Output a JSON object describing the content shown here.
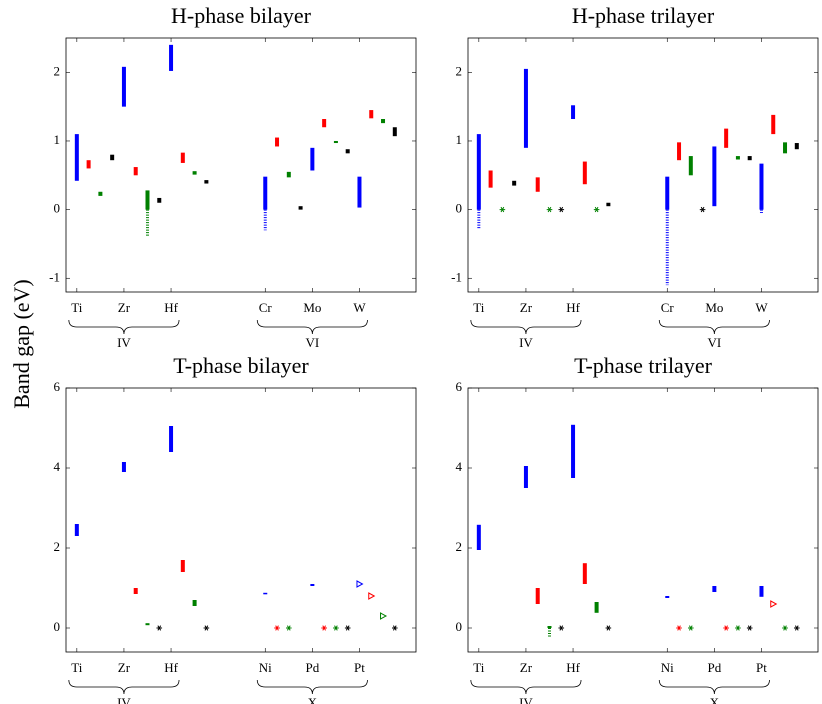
{
  "ylabel": "Band gap (eV)",
  "chart_data": [
    {
      "type": "range-bar",
      "title": "H-phase bilayer",
      "categories": [
        "Ti",
        "Zr",
        "Hf",
        "Cr",
        "Mo",
        "W"
      ],
      "x": [
        1,
        2,
        3,
        5,
        6,
        7
      ],
      "groups": [
        {
          "label": "IV",
          "x": [
            1,
            3
          ]
        },
        {
          "label": "VI",
          "x": [
            5,
            7
          ]
        }
      ],
      "xlim": [
        0.77,
        8.2
      ],
      "ylim": [
        -1.2,
        2.5
      ],
      "yticks": [
        -1,
        0,
        1,
        2
      ],
      "series": [
        {
          "color": "#0000ff",
          "items": [
            {
              "x": 1,
              "low": 0.42,
              "high": 1.1
            },
            {
              "x": 2,
              "low": 1.5,
              "high": 2.08
            },
            {
              "x": 3,
              "low": 2.02,
              "high": 2.4
            },
            {
              "x": 5,
              "low": 0,
              "high": 0.48,
              "dotted_low": -0.3
            },
            {
              "x": 6,
              "low": 0.57,
              "high": 0.9
            },
            {
              "x": 7,
              "low": 0.03,
              "high": 0.48
            }
          ]
        },
        {
          "color": "#ff0000",
          "items": [
            {
              "x": 1.25,
              "low": 0.6,
              "high": 0.72
            },
            {
              "x": 2.25,
              "low": 0.5,
              "high": 0.62
            },
            {
              "x": 3.25,
              "low": 0.68,
              "high": 0.83
            },
            {
              "x": 5.25,
              "low": 0.92,
              "high": 1.05
            },
            {
              "x": 6.25,
              "low": 1.2,
              "high": 1.32
            },
            {
              "x": 7.25,
              "low": 1.33,
              "high": 1.45
            }
          ]
        },
        {
          "color": "#008000",
          "items": [
            {
              "x": 1.5,
              "low": 0.2,
              "high": 0.26
            },
            {
              "x": 2.5,
              "low": 0,
              "high": 0.28,
              "dotted_low": -0.4
            },
            {
              "x": 3.5,
              "low": 0.51,
              "high": 0.56
            },
            {
              "x": 5.5,
              "low": 0.47,
              "high": 0.55
            },
            {
              "x": 6.5,
              "low": 0.97,
              "high": 1.0
            },
            {
              "x": 7.5,
              "low": 1.26,
              "high": 1.32
            }
          ]
        },
        {
          "color": "#000000",
          "items": [
            {
              "x": 1.75,
              "low": 0.72,
              "high": 0.8
            },
            {
              "x": 2.75,
              "low": 0.1,
              "high": 0.17
            },
            {
              "x": 3.75,
              "low": 0.38,
              "high": 0.43
            },
            {
              "x": 5.75,
              "low": 0,
              "high": 0.05
            },
            {
              "x": 6.75,
              "low": 0.82,
              "high": 0.88
            },
            {
              "x": 7.75,
              "low": 1.07,
              "high": 1.2
            }
          ]
        }
      ]
    },
    {
      "type": "range-bar",
      "title": "H-phase trilayer",
      "categories": [
        "Ti",
        "Zr",
        "Hf",
        "Cr",
        "Mo",
        "W"
      ],
      "x": [
        1,
        2,
        3,
        5,
        6,
        7
      ],
      "groups": [
        {
          "label": "IV",
          "x": [
            1,
            3
          ]
        },
        {
          "label": "VI",
          "x": [
            5,
            7
          ]
        }
      ],
      "xlim": [
        0.77,
        8.2
      ],
      "ylim": [
        -1.2,
        2.5
      ],
      "yticks": [
        -1,
        0,
        1,
        2
      ],
      "series": [
        {
          "color": "#0000ff",
          "items": [
            {
              "x": 1,
              "low": 0,
              "high": 1.1,
              "dotted_low": -0.28
            },
            {
              "x": 2,
              "low": 0.9,
              "high": 2.05
            },
            {
              "x": 3,
              "low": 1.32,
              "high": 1.52
            },
            {
              "x": 5,
              "low": 0,
              "high": 0.48,
              "dotted_low": -1.1
            },
            {
              "x": 6,
              "low": 0.05,
              "high": 0.92
            },
            {
              "x": 7,
              "low": 0,
              "high": 0.67,
              "dotted_low": -0.05
            }
          ]
        },
        {
          "color": "#ff0000",
          "items": [
            {
              "x": 1.25,
              "low": 0.32,
              "high": 0.57
            },
            {
              "x": 2.25,
              "low": 0.26,
              "high": 0.47
            },
            {
              "x": 3.25,
              "low": 0.37,
              "high": 0.7
            },
            {
              "x": 5.25,
              "low": 0.72,
              "high": 0.98
            },
            {
              "x": 6.25,
              "low": 0.9,
              "high": 1.18
            },
            {
              "x": 7.25,
              "low": 1.1,
              "high": 1.38
            }
          ]
        },
        {
          "color": "#008000",
          "items": [
            {
              "x": 1.5,
              "star": 0
            },
            {
              "x": 2.5,
              "star": 0
            },
            {
              "x": 3.5,
              "star": 0
            },
            {
              "x": 5.5,
              "low": 0.5,
              "high": 0.78
            },
            {
              "x": 6.5,
              "low": 0.73,
              "high": 0.78
            },
            {
              "x": 7.5,
              "low": 0.82,
              "high": 0.98
            }
          ]
        },
        {
          "color": "#000000",
          "items": [
            {
              "x": 1.75,
              "low": 0.35,
              "high": 0.42
            },
            {
              "x": 2.75,
              "star": 0
            },
            {
              "x": 3.75,
              "low": 0.05,
              "high": 0.1
            },
            {
              "x": 5.75,
              "star": 0
            },
            {
              "x": 6.75,
              "low": 0.72,
              "high": 0.78
            },
            {
              "x": 7.75,
              "low": 0.88,
              "high": 0.97
            }
          ]
        }
      ]
    },
    {
      "type": "range-bar",
      "title": "T-phase bilayer",
      "categories": [
        "Ti",
        "Zr",
        "Hf",
        "Ni",
        "Pd",
        "Pt"
      ],
      "x": [
        1,
        2,
        3,
        5,
        6,
        7
      ],
      "groups": [
        {
          "label": "IV",
          "x": [
            1,
            3
          ]
        },
        {
          "label": "X",
          "x": [
            5,
            7
          ]
        }
      ],
      "xlim": [
        0.77,
        8.2
      ],
      "ylim": [
        -0.6,
        6
      ],
      "yticks": [
        0,
        2,
        4,
        6
      ],
      "series": [
        {
          "color": "#0000ff",
          "items": [
            {
              "x": 1,
              "low": 2.3,
              "high": 2.6
            },
            {
              "x": 2,
              "low": 3.9,
              "high": 4.15
            },
            {
              "x": 3,
              "low": 4.4,
              "high": 5.05
            },
            {
              "x": 5,
              "low": 0.85,
              "high": 0.88
            },
            {
              "x": 6,
              "low": 1.05,
              "high": 1.1
            },
            {
              "x": 7,
              "triangle": 1.1
            }
          ]
        },
        {
          "color": "#ff0000",
          "items": [
            {
              "x": 2.25,
              "low": 0.85,
              "high": 1.0
            },
            {
              "x": 3.25,
              "low": 1.4,
              "high": 1.7
            },
            {
              "x": 5.25,
              "star": 0
            },
            {
              "x": 6.25,
              "star": 0
            },
            {
              "x": 7.25,
              "triangle": 0.8
            }
          ]
        },
        {
          "color": "#008000",
          "items": [
            {
              "x": 2.5,
              "low": 0.07,
              "high": 0.12
            },
            {
              "x": 3.5,
              "low": 0.55,
              "high": 0.7
            },
            {
              "x": 5.5,
              "star": 0
            },
            {
              "x": 6.5,
              "star": 0
            },
            {
              "x": 7.5,
              "triangle": 0.3
            }
          ]
        },
        {
          "color": "#000000",
          "items": [
            {
              "x": 2.75,
              "star": 0
            },
            {
              "x": 3.75,
              "star": 0
            },
            {
              "x": 6.75,
              "star": 0
            },
            {
              "x": 7.75,
              "star": 0
            }
          ]
        }
      ]
    },
    {
      "type": "range-bar",
      "title": "T-phase trilayer",
      "categories": [
        "Ti",
        "Zr",
        "Hf",
        "Ni",
        "Pd",
        "Pt"
      ],
      "x": [
        1,
        2,
        3,
        5,
        6,
        7
      ],
      "groups": [
        {
          "label": "IV",
          "x": [
            1,
            3
          ]
        },
        {
          "label": "X",
          "x": [
            5,
            7
          ]
        }
      ],
      "xlim": [
        0.77,
        8.2
      ],
      "ylim": [
        -0.6,
        6
      ],
      "yticks": [
        0,
        2,
        4,
        6
      ],
      "series": [
        {
          "color": "#0000ff",
          "items": [
            {
              "x": 1,
              "low": 1.95,
              "high": 2.58
            },
            {
              "x": 2,
              "low": 3.5,
              "high": 4.05
            },
            {
              "x": 3,
              "low": 3.75,
              "high": 5.08
            },
            {
              "x": 5,
              "low": 0.75,
              "high": 0.8
            },
            {
              "x": 6,
              "low": 0.9,
              "high": 1.05
            },
            {
              "x": 7,
              "low": 0.78,
              "high": 1.05
            }
          ]
        },
        {
          "color": "#ff0000",
          "items": [
            {
              "x": 2.25,
              "low": 0.6,
              "high": 1.0
            },
            {
              "x": 3.25,
              "low": 1.1,
              "high": 1.62
            },
            {
              "x": 5.25,
              "star": 0
            },
            {
              "x": 6.25,
              "star": 0
            },
            {
              "x": 7.25,
              "triangle": 0.6
            }
          ]
        },
        {
          "color": "#008000",
          "items": [
            {
              "x": 2.5,
              "low": 0,
              "high": 0.05,
              "dotted_low": -0.25
            },
            {
              "x": 3.5,
              "low": 0.38,
              "high": 0.65
            },
            {
              "x": 5.5,
              "star": 0
            },
            {
              "x": 6.5,
              "star": 0
            },
            {
              "x": 7.5,
              "star": 0
            }
          ]
        },
        {
          "color": "#000000",
          "items": [
            {
              "x": 2.75,
              "star": 0
            },
            {
              "x": 3.75,
              "star": 0
            },
            {
              "x": 6.75,
              "star": 0
            },
            {
              "x": 7.75,
              "star": 0
            }
          ]
        }
      ]
    }
  ]
}
